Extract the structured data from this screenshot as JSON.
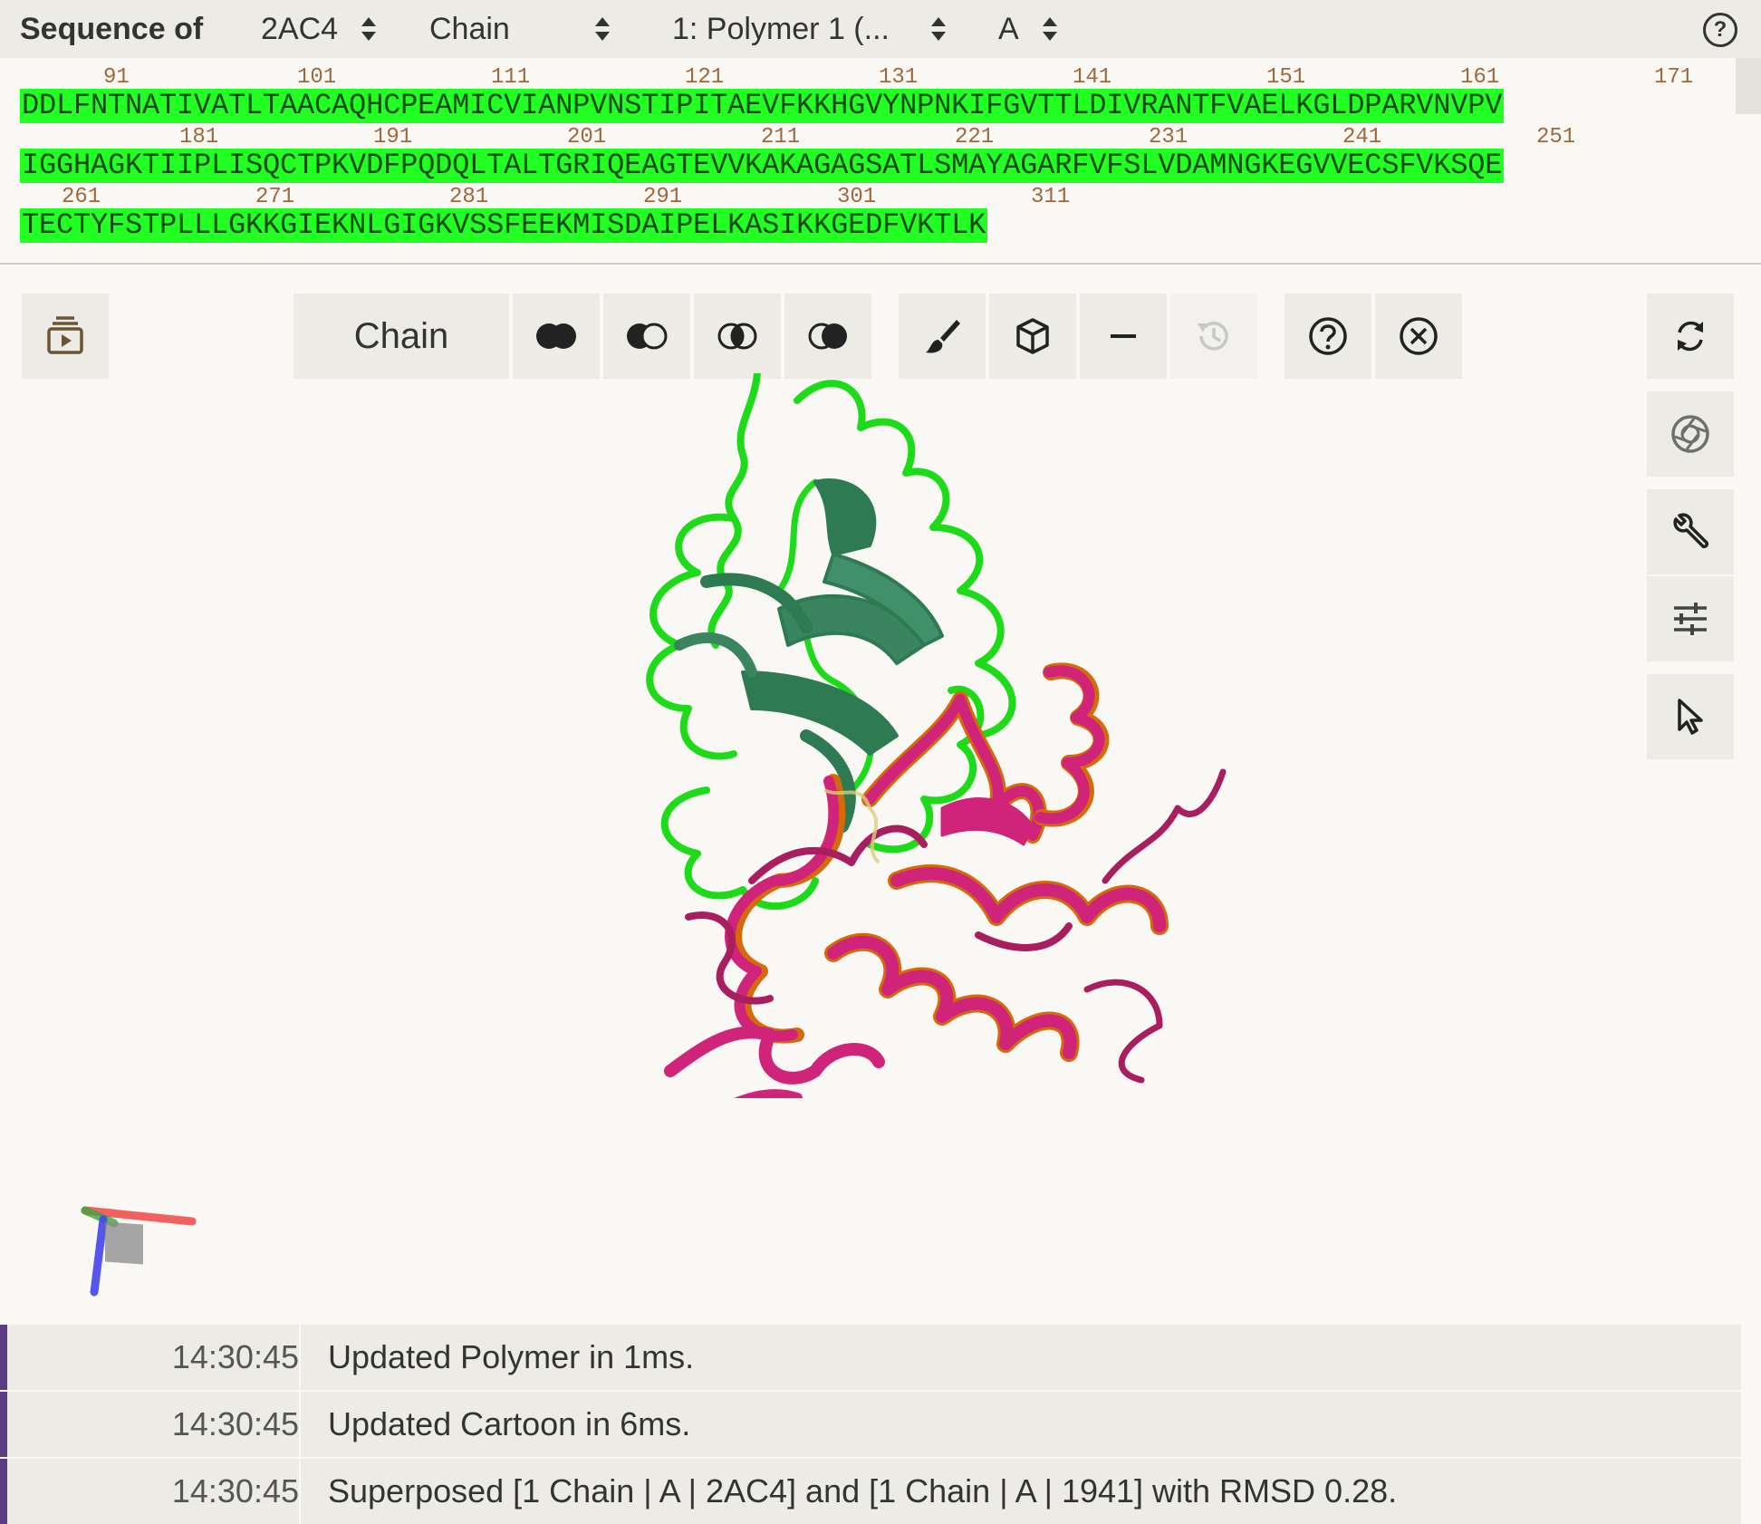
{
  "header": {
    "label": "Sequence of",
    "structure": "2AC4",
    "mode": "Chain",
    "entity": "1: Polymer 1 (...",
    "chain": "A",
    "help_icon": "help-circle-icon"
  },
  "sequence": {
    "rows": [
      {
        "numbers": [
          "91",
          "101",
          "111",
          "121",
          "131",
          "141",
          "151",
          "161",
          "171"
        ],
        "seq": "DDLFNTNATIVATLTAACAQHCPEAMICVIANPVNSTIPITAEVFKKHGVYNPNKIFGVTTLDIVRANTFVAELKGLDPARVNVPV"
      },
      {
        "numbers": [
          "181",
          "191",
          "201",
          "211",
          "221",
          "231",
          "241",
          "251"
        ],
        "seq": "IGGHAGKTIIPLISQCTPKVDFPQDQLTALTGRIQEAGTEVVKAKAGAGSATLSMAYAGARFVFSLVDAMNGKEGVVECSFVKSQE"
      },
      {
        "numbers": [
          "261",
          "271",
          "281",
          "291",
          "301",
          "311"
        ],
        "seq": "TECTYFSTPLLLGKKGIEKNLGIGKVSSFEEKMISDAIPELKASIKKGEDFVKTLK"
      }
    ],
    "highlight_color": "#22ff22"
  },
  "toolbar": {
    "chain_label": "Chain",
    "buttons": [
      "animation-icon",
      "union-icon",
      "subtract-icon",
      "intersect-icon",
      "set-ops-icon",
      "brush-icon",
      "cube-icon",
      "minus-icon",
      "history-icon",
      "help-icon",
      "close-icon"
    ],
    "right_buttons": [
      "reset-view-icon",
      "screenshot-icon",
      "wrench-icon",
      "sliders-icon",
      "cursor-icon"
    ]
  },
  "structure": {
    "chain_colors": {
      "green_outline": "#22e01a",
      "green_fill": "#2e7a52",
      "magenta": "#d0247a",
      "orange": "#d56a08"
    }
  },
  "log": {
    "entries": [
      {
        "time": "14:30:45",
        "message": "Updated Polymer in 1ms."
      },
      {
        "time": "14:30:45",
        "message": "Updated Cartoon in 6ms."
      },
      {
        "time": "14:30:45",
        "message": "Superposed [1 Chain | A | 2AC4] and [1 Chain | A | 1941] with RMSD 0.28."
      }
    ]
  }
}
